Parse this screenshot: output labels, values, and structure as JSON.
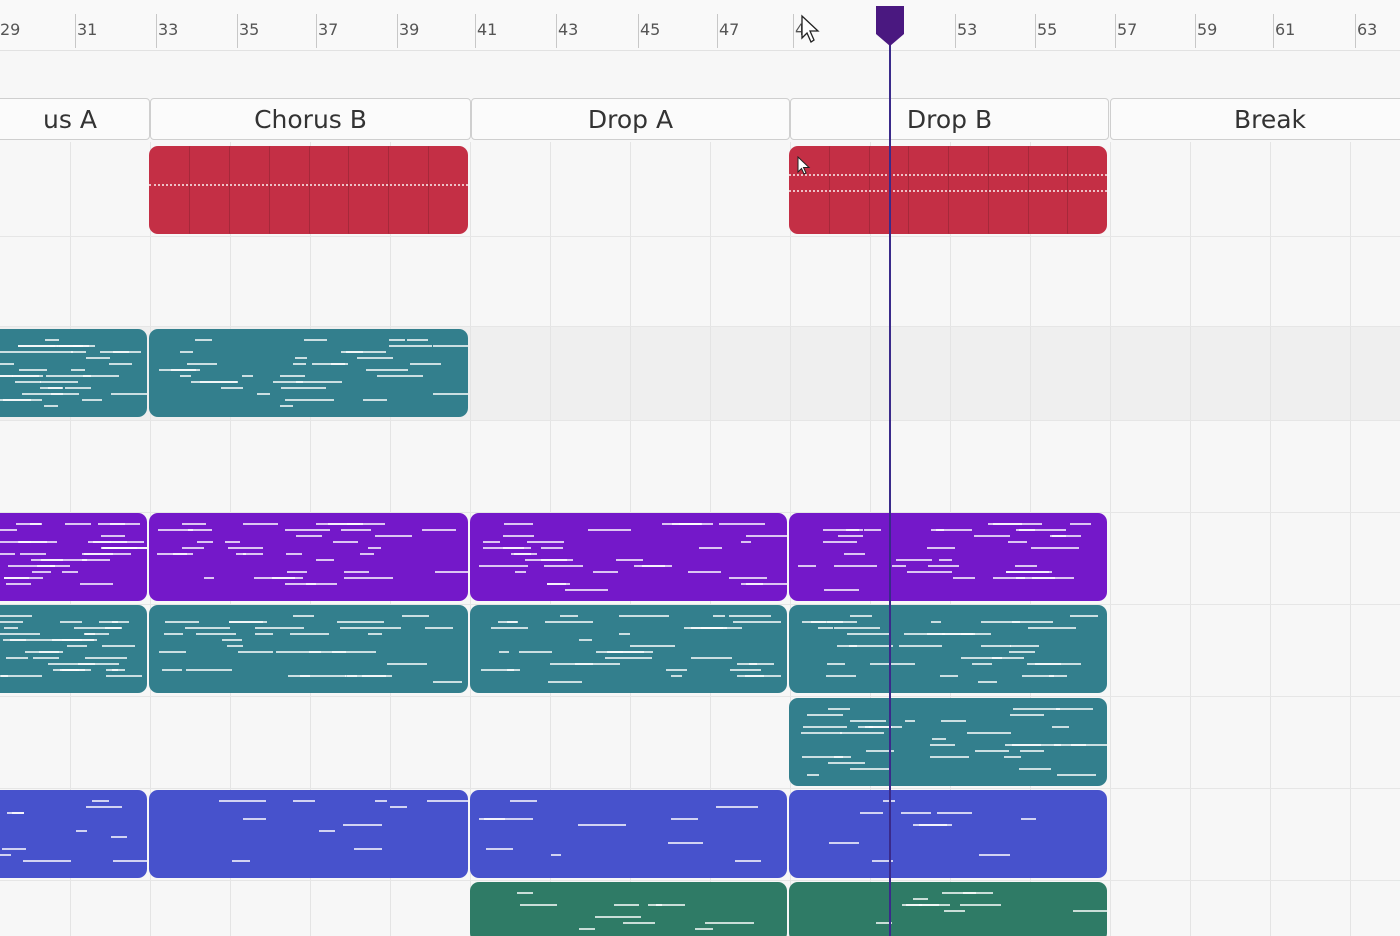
{
  "ruler": {
    "ticks": [
      "29",
      "31",
      "33",
      "35",
      "37",
      "39",
      "41",
      "43",
      "45",
      "47",
      "4",
      "53",
      "55",
      "57",
      "59",
      "61",
      "63"
    ]
  },
  "sections": [
    "us A",
    "Chorus B",
    "Drop A",
    "Drop B",
    "Break"
  ],
  "tracks": [
    {
      "color": "#c42f45",
      "clips": [
        "chorus-b",
        "drop-b"
      ]
    },
    {
      "color": "#337f8d",
      "clips": [
        "chorus-a",
        "chorus-b"
      ]
    },
    {
      "color": "#7418c9",
      "clips": [
        "chorus-a",
        "chorus-b",
        "drop-a",
        "drop-b"
      ]
    },
    {
      "color": "#337f8d",
      "clips": [
        "chorus-a",
        "chorus-b",
        "drop-a",
        "drop-b"
      ]
    },
    {
      "color": "#337f8d",
      "clips": [
        "drop-b"
      ]
    },
    {
      "color": "#4752cc",
      "clips": [
        "chorus-a",
        "chorus-b",
        "drop-a",
        "drop-b"
      ]
    },
    {
      "color": "#2f7b66",
      "clips": [
        "drop-a",
        "drop-b"
      ]
    }
  ],
  "playhead": {
    "color": "#4a1880",
    "bar": "51"
  },
  "icons": {
    "cursor": "pointer-cursor-icon",
    "playhead": "playhead-marker-icon"
  }
}
